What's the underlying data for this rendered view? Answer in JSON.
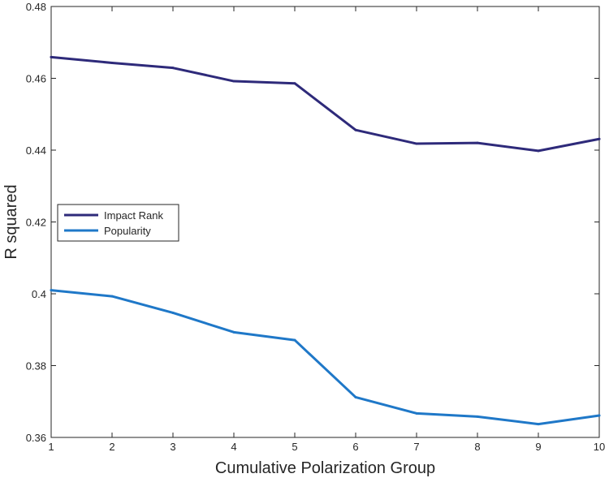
{
  "chart_data": {
    "type": "line",
    "title": "",
    "xlabel": "Cumulative Polarization Group",
    "ylabel": "R squared",
    "xlim": [
      1,
      10
    ],
    "ylim": [
      0.36,
      0.48
    ],
    "x": [
      1,
      2,
      3,
      4,
      5,
      6,
      7,
      8,
      9,
      10
    ],
    "xticks": [
      "1",
      "2",
      "3",
      "4",
      "5",
      "6",
      "7",
      "8",
      "9",
      "10"
    ],
    "yticks": [
      "0.36",
      "0.38",
      "0.4",
      "0.42",
      "0.44",
      "0.46",
      "0.48"
    ],
    "ytick_values": [
      0.36,
      0.38,
      0.4,
      0.42,
      0.44,
      0.46,
      0.48
    ],
    "grid": false,
    "legend_position": "center-left",
    "series": [
      {
        "name": "Impact Rank",
        "color": "#2e2a7a",
        "values": [
          0.4659,
          0.4643,
          0.4629,
          0.4592,
          0.4586,
          0.4456,
          0.4418,
          0.442,
          0.4398,
          0.4431
        ]
      },
      {
        "name": "Popularity",
        "color": "#1f78c8",
        "values": [
          0.401,
          0.3993,
          0.3947,
          0.3893,
          0.3871,
          0.3712,
          0.3667,
          0.3658,
          0.3637,
          0.3661
        ]
      }
    ]
  }
}
